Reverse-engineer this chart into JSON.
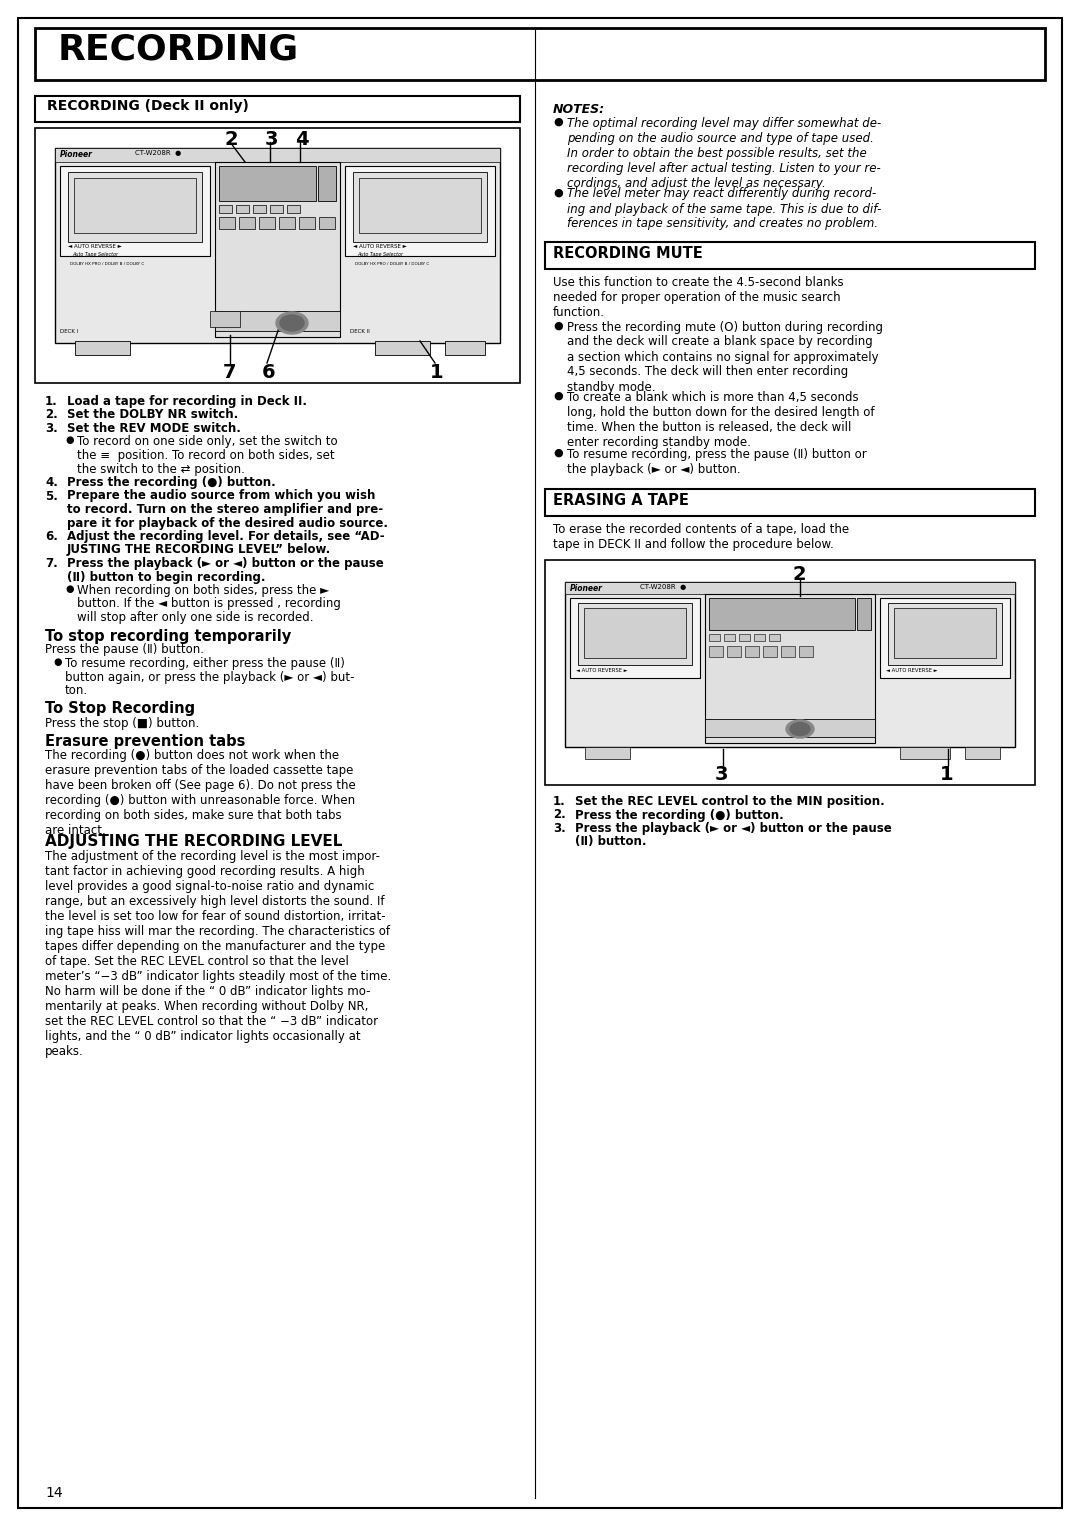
{
  "page_bg": "#ffffff",
  "title": "RECORDING",
  "left_section_title": "RECORDING (Deck II only)",
  "notes_title": "NOTES:",
  "note1": "The optimal recording level may differ somewhat de-\npending on the audio source and type of tape used.\nIn order to obtain the best possible results, set the\nrecording level after actual testing. Listen to your re-\ncordings, and adjust the level as necessary.",
  "note2": "The level meter may react differently during record-\ning and playback of the same tape. This is due to dif-\nferences in tape sensitivity, and creates no problem.",
  "mute_title": "RECORDING MUTE",
  "mute_intro": "Use this function to create the 4.5-second blanks\nneeded for proper operation of the music search\nfunction.",
  "mute_b1": "Press the recording mute (O) button during recording\nand the deck will create a blank space by recording\na section which contains no signal for approximately\n4,5 seconds. The deck will then enter recording\nstandby mode.",
  "mute_b2": "To create a blank which is more than 4,5 seconds\nlong, hold the button down for the desired length of\ntime. When the button is released, the deck will\nenter recording standby mode.",
  "mute_b3": "To resume recording, press the pause (Ⅱ) button or\nthe playback (► or ◄) button.",
  "erase_title": "ERASING A TAPE",
  "erase_intro": "To erase the recorded contents of a tape, load the\ntape in DECK II and follow the procedure below.",
  "erase_step1": "1.   Set the REC LEVEL control to the MIN position.",
  "erase_step2": "2.   Press the recording (●) button.",
  "erase_step3": "3.   Press the playback (► or ◄) button or the pause\n     (Ⅱ) button.",
  "page_num": "14"
}
